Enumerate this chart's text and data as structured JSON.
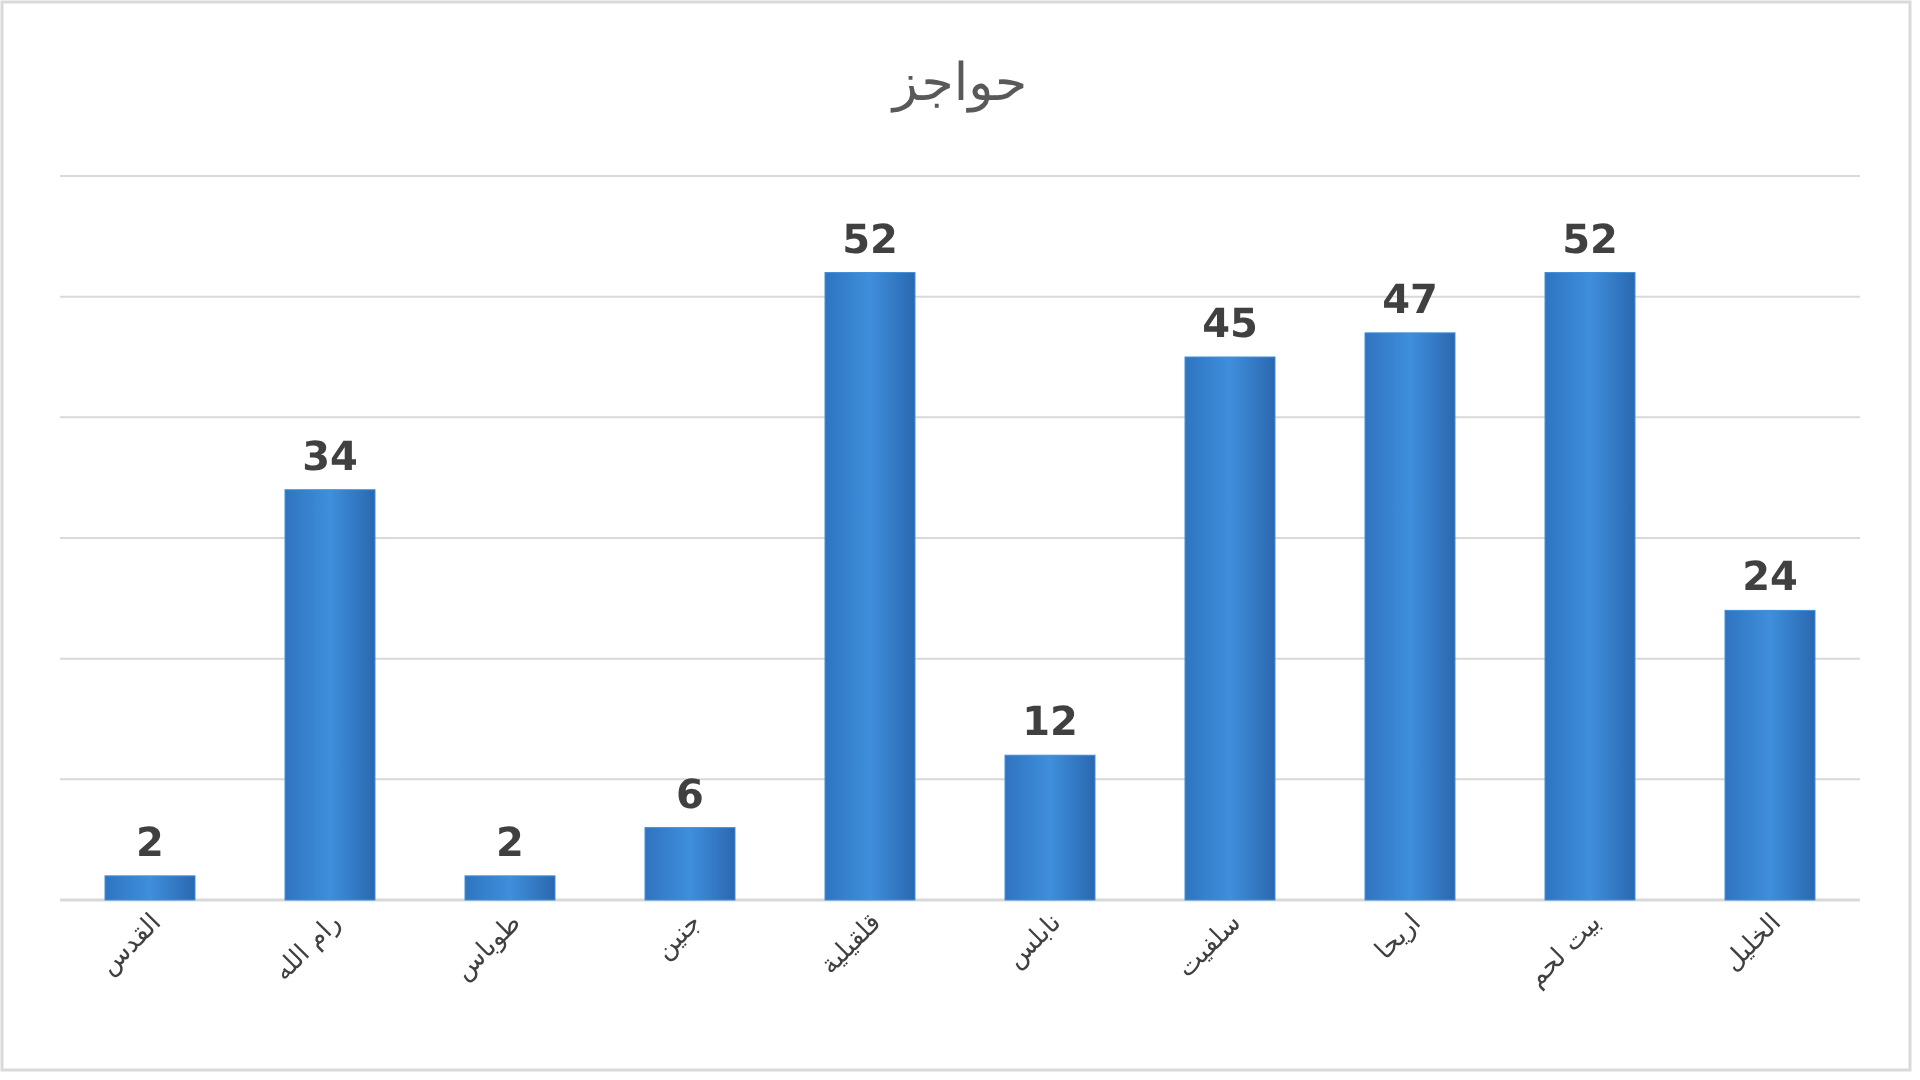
{
  "chart_data": {
    "type": "bar",
    "title": "حواجز",
    "categories": [
      "القدس",
      "رام الله",
      "طوباس",
      "جنين",
      "قلقيلية",
      "نابلس",
      "سلفيت",
      "اريحا",
      "بيت لحم",
      "الخليل"
    ],
    "values": [
      2,
      34,
      2,
      6,
      52,
      12,
      45,
      47,
      52,
      24
    ],
    "color": "#3f8fdc",
    "ylim": [
      0,
      60
    ],
    "yticks": [
      0,
      10,
      20,
      30,
      40,
      50,
      60
    ],
    "tick_labels": "x",
    "grid": "y",
    "data_labels": true
  }
}
